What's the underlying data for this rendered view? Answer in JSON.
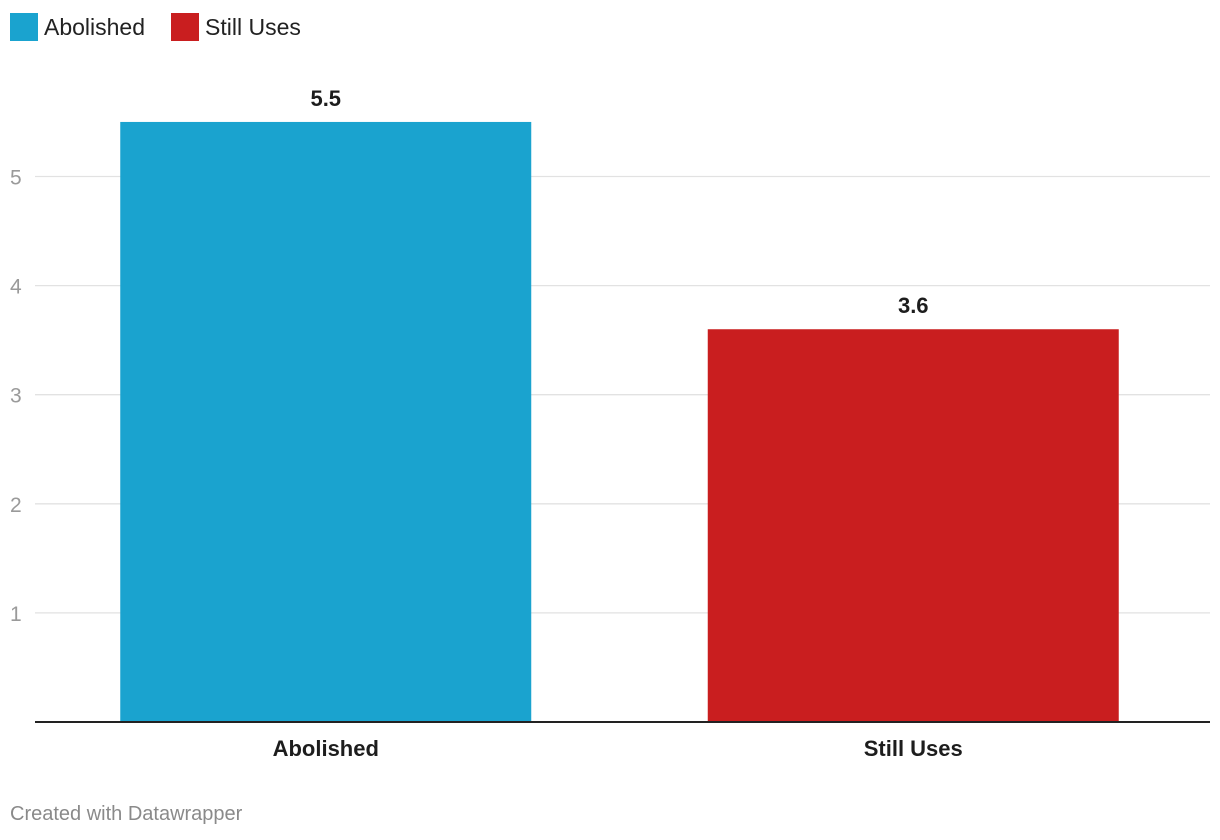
{
  "legend": [
    {
      "label": "Abolished",
      "color": "#1aa3cf"
    },
    {
      "label": "Still Uses",
      "color": "#c91e1f"
    }
  ],
  "chart_data": {
    "type": "bar",
    "categories": [
      "Abolished",
      "Still Uses"
    ],
    "values": [
      5.5,
      3.6
    ],
    "value_labels": [
      "5.5",
      "3.6"
    ],
    "colors": [
      "#1aa3cf",
      "#c91e1f"
    ],
    "yticks": [
      1,
      2,
      3,
      4,
      5
    ],
    "ylim": [
      0,
      5.5
    ],
    "grid": true,
    "legend_position": "top-left"
  },
  "footer": {
    "credit": "Created with Datawrapper"
  }
}
